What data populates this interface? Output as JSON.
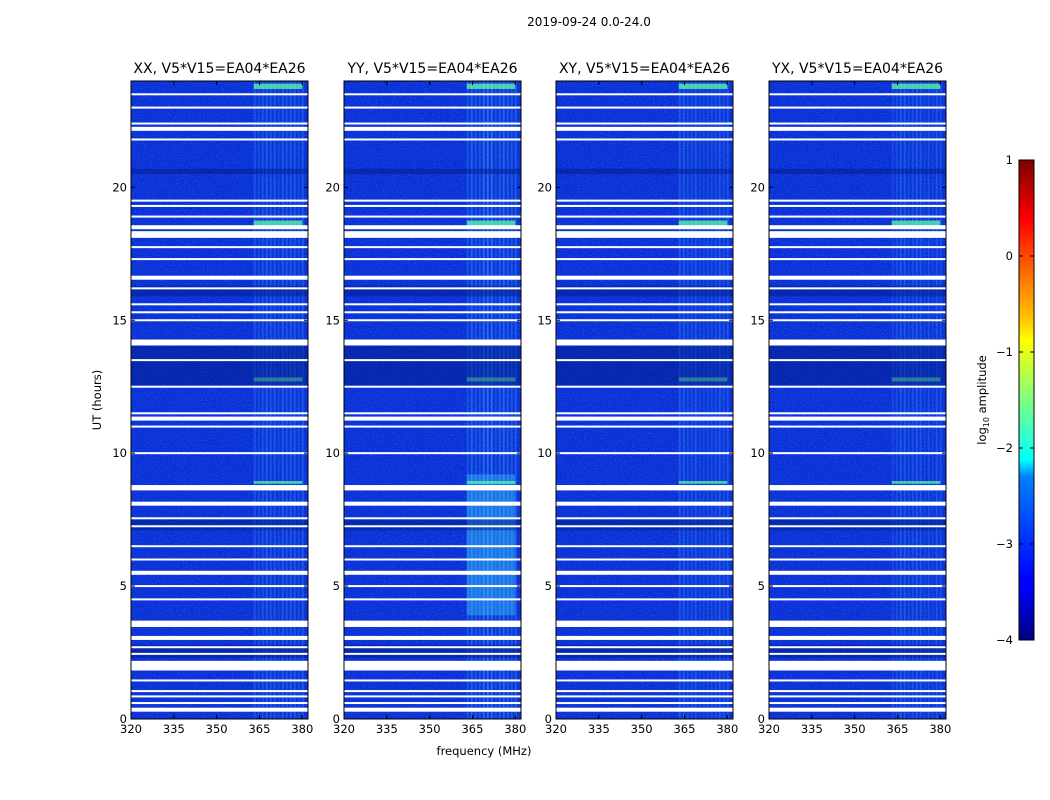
{
  "figure": {
    "suptitle": "2019-09-24 0.0-24.0"
  },
  "chart_data": {
    "type": "heatmap",
    "suptitle": "2019-09-24 0.0-24.0",
    "xlabel": "frequency (MHz)",
    "ylabel": "UT (hours)",
    "xlim": [
      320,
      382
    ],
    "ylim": [
      0,
      24
    ],
    "xticks": [
      320,
      335,
      350,
      365,
      380
    ],
    "yticks": [
      0,
      5,
      10,
      15,
      20
    ],
    "panels": [
      {
        "title": "XX, V5*V15=EA04*EA26",
        "correlation": "XX"
      },
      {
        "title": "YY, V5*V15=EA04*EA26",
        "correlation": "YY"
      },
      {
        "title": "XY, V5*V15=EA04*EA26",
        "correlation": "XY"
      },
      {
        "title": "YX, V5*V15=EA04*EA26",
        "correlation": "YX"
      }
    ],
    "colorbar": {
      "label": "log10 amplitude",
      "min": -4,
      "max": 1,
      "ticks": [
        -4,
        -3,
        -2,
        -1,
        0,
        1
      ],
      "tick_labels": [
        "−4",
        "−3",
        "−2",
        "−1",
        "0",
        "1"
      ],
      "colormap": "jet"
    },
    "flagged_ut_hours": [
      0.35,
      0.6,
      0.85,
      1.05,
      1.45,
      1.9,
      2.0,
      2.15,
      2.45,
      2.7,
      3.05,
      3.5,
      3.65,
      4.5,
      5.0,
      5.5,
      6.0,
      6.5,
      7.25,
      7.55,
      8.1,
      8.65,
      8.75,
      10.0,
      11.0,
      11.3,
      11.5,
      12.5,
      13.5,
      14.1,
      14.2,
      15.0,
      15.3,
      15.6,
      16.2,
      16.6,
      17.3,
      17.75,
      18.2,
      18.3,
      18.5,
      18.9,
      19.3,
      19.5,
      21.8,
      22.2,
      22.4,
      23.0,
      23.5
    ],
    "bright_bands_ut": [
      {
        "start": 8.85,
        "end": 8.95
      },
      {
        "start": 12.7,
        "end": 12.85
      },
      {
        "start": 18.5,
        "end": 18.75
      },
      {
        "start": 23.7,
        "end": 23.9
      }
    ],
    "rfi_band_mhz": [
      363,
      380
    ]
  }
}
